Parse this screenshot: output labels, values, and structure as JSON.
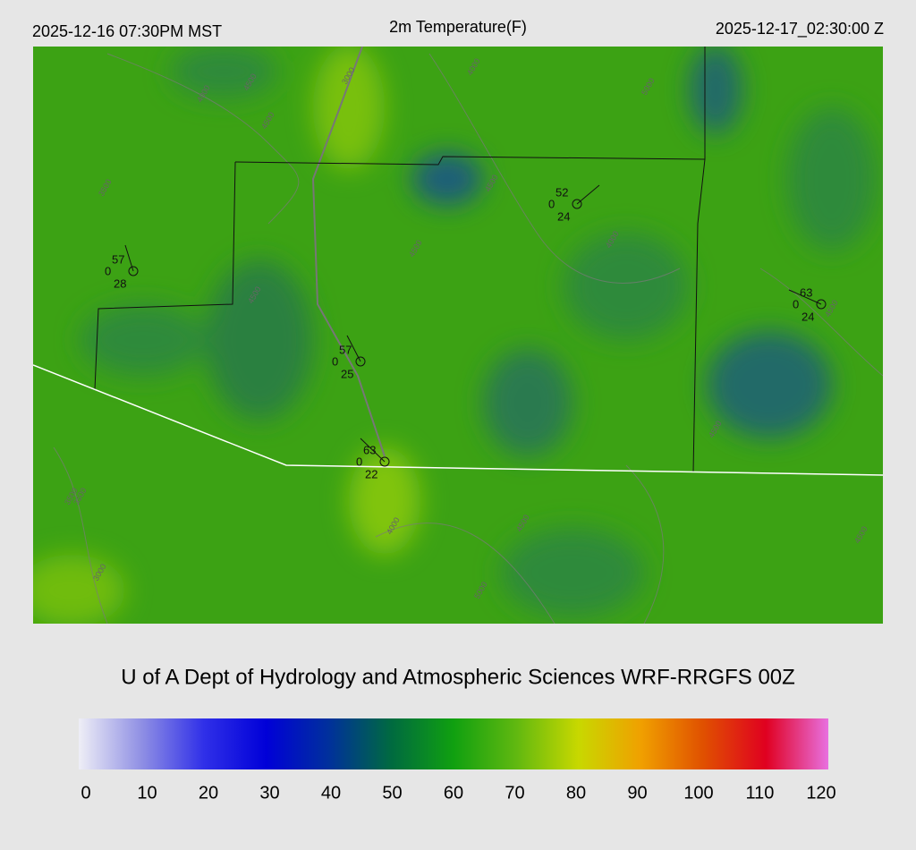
{
  "header": {
    "local_time": "2025-12-16 07:30PM MST",
    "title": "2m Temperature(F)",
    "utc_time": "2025-12-17_02:30:00 Z"
  },
  "stations": [
    {
      "temp": "57",
      "left": "0",
      "bottom": "28"
    },
    {
      "temp": "52",
      "left": "0",
      "bottom": "24"
    },
    {
      "temp": "63",
      "left": "0",
      "bottom": "24"
    },
    {
      "temp": "57",
      "left": "0",
      "bottom": "25"
    },
    {
      "temp": "63",
      "left": "0",
      "bottom": "22"
    }
  ],
  "contour_labels": [
    "4000",
    "4500",
    "3000",
    "4500",
    "4000",
    "3500",
    "3500",
    "4500",
    "4500",
    "4000",
    "4500",
    "5000",
    "4500",
    "3500",
    "3000",
    "4000",
    "4500",
    "5000",
    "4500",
    "4500"
  ],
  "footer": "U of A Dept of Hydrology and Atmospheric Sciences WRF-RRGFS 00Z",
  "colorbar": {
    "range": [
      0,
      120
    ],
    "ticks": [
      0,
      10,
      20,
      30,
      40,
      50,
      60,
      70,
      80,
      90,
      100,
      110,
      120
    ],
    "colors": [
      "#eeeef6",
      "#9090e4",
      "#3030e8",
      "#0000d8",
      "#00309c",
      "#006a40",
      "#10a010",
      "#60b810",
      "#c8d800",
      "#f0a000",
      "#e05000",
      "#e00020",
      "#e870e0"
    ]
  }
}
